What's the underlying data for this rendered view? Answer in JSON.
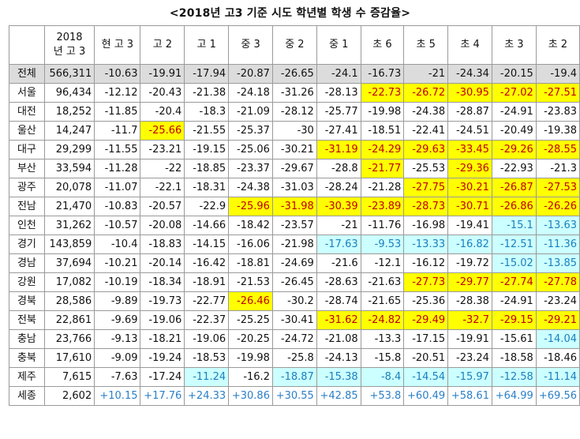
{
  "title": "<2018년 고3 기준 시도 학년별 학생 수 증감율>",
  "headers": [
    "",
    "2018 년 고 3",
    "현 고 3",
    "고 2",
    "고 1",
    "중 3",
    "중 2",
    "중 1",
    "초 6",
    "초 5",
    "초 4",
    "초 3",
    "초 2"
  ],
  "rows": [
    {
      "region": "전체",
      "values": [
        "566,311",
        "-10.63",
        "-19.91",
        "-17.94",
        "-20.87",
        "-26.65",
        "-24.1",
        "-16.73",
        "-21",
        "-24.34",
        "-20.15",
        "-19.4"
      ]
    },
    {
      "region": "서울",
      "values": [
        "96,434",
        "-12.12",
        "-20.43",
        "-21.38",
        "-24.18",
        "-31.26",
        "-28.13",
        "-22.73",
        "-26.72",
        "-30.95",
        "-27.02",
        "-27.51"
      ]
    },
    {
      "region": "대전",
      "values": [
        "18,252",
        "-11.85",
        "-20.4",
        "-18.3",
        "-21.09",
        "-28.12",
        "-25.77",
        "-19.98",
        "-24.38",
        "-28.87",
        "-24.91",
        "-23.83"
      ]
    },
    {
      "region": "울산",
      "values": [
        "14,247",
        "-11.7",
        "-25.66",
        "-21.55",
        "-25.37",
        "-30",
        "-27.41",
        "-18.51",
        "-22.41",
        "-24.51",
        "-20.49",
        "-19.38"
      ]
    },
    {
      "region": "대구",
      "values": [
        "29,299",
        "-11.55",
        "-23.21",
        "-19.15",
        "-25.06",
        "-30.21",
        "-31.19",
        "-24.29",
        "-29.63",
        "-33.45",
        "-29.26",
        "-28.55"
      ]
    },
    {
      "region": "부산",
      "values": [
        "33,594",
        "-11.28",
        "-22",
        "-18.85",
        "-23.37",
        "-29.67",
        "-28.8",
        "-21.77",
        "-25.53",
        "-29.36",
        "-22.93",
        "-21.3"
      ]
    },
    {
      "region": "광주",
      "values": [
        "20,078",
        "-11.07",
        "-22.1",
        "-18.31",
        "-24.38",
        "-31.03",
        "-28.24",
        "-21.28",
        "-27.75",
        "-30.21",
        "-26.87",
        "-27.53"
      ]
    },
    {
      "region": "전남",
      "values": [
        "21,470",
        "-10.83",
        "-20.57",
        "-22.9",
        "-25.96",
        "-31.98",
        "-30.39",
        "-23.89",
        "-28.73",
        "-30.71",
        "-26.86",
        "-26.26"
      ]
    },
    {
      "region": "인천",
      "values": [
        "31,262",
        "-10.57",
        "-20.08",
        "-14.66",
        "-18.42",
        "-23.57",
        "-21",
        "-11.76",
        "-16.98",
        "-19.41",
        "-15.1",
        "-13.63"
      ]
    },
    {
      "region": "경기",
      "values": [
        "143,859",
        "-10.4",
        "-18.83",
        "-14.15",
        "-16.06",
        "-21.98",
        "-17.63",
        "-9.53",
        "-13.33",
        "-16.82",
        "-12.51",
        "-11.36"
      ]
    },
    {
      "region": "경남",
      "values": [
        "37,694",
        "-10.21",
        "-20.14",
        "-16.42",
        "-18.81",
        "-24.69",
        "-21.6",
        "-12.1",
        "-16.12",
        "-19.72",
        "-15.02",
        "-13.85"
      ]
    },
    {
      "region": "강원",
      "values": [
        "17,082",
        "-10.19",
        "-18.34",
        "-18.91",
        "-21.53",
        "-26.45",
        "-28.63",
        "-21.63",
        "-27.73",
        "-29.77",
        "-27.74",
        "-27.78"
      ]
    },
    {
      "region": "경북",
      "values": [
        "28,586",
        "-9.89",
        "-19.73",
        "-22.77",
        "-26.46",
        "-30.2",
        "-28.74",
        "-21.65",
        "-25.36",
        "-28.38",
        "-24.91",
        "-23.24"
      ]
    },
    {
      "region": "전북",
      "values": [
        "22,861",
        "-9.69",
        "-19.06",
        "-22.37",
        "-25.25",
        "-30.41",
        "-31.62",
        "-24.82",
        "-29.49",
        "-32.7",
        "-29.15",
        "-29.21"
      ]
    },
    {
      "region": "충남",
      "values": [
        "23,766",
        "-9.13",
        "-18.21",
        "-19.06",
        "-20.25",
        "-24.72",
        "-21.08",
        "-13.3",
        "-17.15",
        "-19.91",
        "-15.61",
        "-14.04"
      ]
    },
    {
      "region": "충북",
      "values": [
        "17,610",
        "-9.09",
        "-19.24",
        "-18.53",
        "-19.98",
        "-25.8",
        "-24.13",
        "-15.8",
        "-20.51",
        "-23.24",
        "-18.58",
        "-18.46"
      ]
    },
    {
      "region": "제주",
      "values": [
        "7,615",
        "-7.63",
        "-17.24",
        "-11.24",
        "-16.2",
        "-18.87",
        "-15.38",
        "-8.4",
        "-14.54",
        "-15.97",
        "-12.58",
        "-11.14"
      ]
    },
    {
      "region": "세종",
      "values": [
        "2,602",
        "+10.15",
        "+17.76",
        "+24.33",
        "+30.86",
        "+30.55",
        "+42.85",
        "+53.8",
        "+60.49",
        "+58.61",
        "+64.99",
        "+69.56"
      ]
    }
  ],
  "highlights": {
    "yellow_color": "#ffff00",
    "yellow_text_color": "#c00000",
    "cyan_color": "#ccffff",
    "cyan_text_color": "#1a7fbf",
    "positive_text_color": "#2a7fc8",
    "total_row_color": "#dcdcdc",
    "yellow": [
      [
        1,
        7
      ],
      [
        1,
        8
      ],
      [
        1,
        9
      ],
      [
        1,
        10
      ],
      [
        1,
        11
      ],
      [
        3,
        2
      ],
      [
        4,
        6
      ],
      [
        4,
        7
      ],
      [
        4,
        8
      ],
      [
        4,
        9
      ],
      [
        4,
        10
      ],
      [
        4,
        11
      ],
      [
        5,
        7
      ],
      [
        5,
        9
      ],
      [
        6,
        8
      ],
      [
        6,
        9
      ],
      [
        6,
        10
      ],
      [
        6,
        11
      ],
      [
        7,
        4
      ],
      [
        7,
        5
      ],
      [
        7,
        6
      ],
      [
        7,
        7
      ],
      [
        7,
        8
      ],
      [
        7,
        9
      ],
      [
        7,
        10
      ],
      [
        7,
        11
      ],
      [
        11,
        8
      ],
      [
        11,
        9
      ],
      [
        11,
        10
      ],
      [
        11,
        11
      ],
      [
        12,
        4
      ],
      [
        13,
        6
      ],
      [
        13,
        7
      ],
      [
        13,
        8
      ],
      [
        13,
        9
      ],
      [
        13,
        10
      ],
      [
        13,
        11
      ]
    ],
    "cyan": [
      [
        8,
        10
      ],
      [
        8,
        11
      ],
      [
        9,
        6
      ],
      [
        9,
        7
      ],
      [
        9,
        8
      ],
      [
        9,
        9
      ],
      [
        9,
        10
      ],
      [
        9,
        11
      ],
      [
        10,
        10
      ],
      [
        10,
        11
      ],
      [
        14,
        11
      ],
      [
        16,
        3
      ],
      [
        16,
        5
      ],
      [
        16,
        6
      ],
      [
        16,
        7
      ],
      [
        16,
        8
      ],
      [
        16,
        9
      ],
      [
        16,
        10
      ],
      [
        16,
        11
      ]
    ]
  }
}
